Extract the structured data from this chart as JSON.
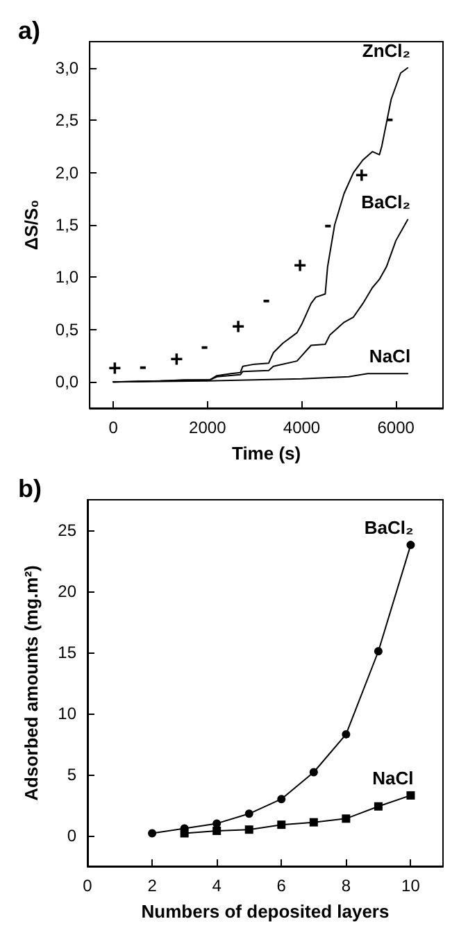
{
  "chart_data": [
    {
      "type": "line",
      "title": "a)",
      "xlabel": "Time (s)",
      "ylabel": "ΔS/S₀",
      "xlim": [
        -500,
        7000
      ],
      "xticks": [
        0,
        2000,
        4000,
        6000
      ],
      "ylim": [
        -0.25,
        3.25
      ],
      "yticks": [
        {
          "value": 0,
          "label": "0,0"
        },
        {
          "value": 0.5,
          "label": "0,5"
        },
        {
          "value": 1,
          "label": "1,0"
        },
        {
          "value": 1.5,
          "label": "1,5"
        },
        {
          "value": 2,
          "label": "2,0"
        },
        {
          "value": 2.5,
          "label": "2,5"
        },
        {
          "value": 3,
          "label": "3,0"
        }
      ],
      "grid": false,
      "marker": "none",
      "series": [
        {
          "name": "ZnCl₂",
          "color": "#000000",
          "x": [
            0,
            1000,
            1500,
            2050,
            2200,
            2500,
            2700,
            2750,
            3000,
            3300,
            3400,
            3600,
            3900,
            4000,
            4200,
            4300,
            4500,
            4550,
            4700,
            4900,
            5100,
            5300,
            5500,
            5650,
            5700,
            5900,
            6100,
            6250
          ],
          "values": [
            0,
            0.01,
            0.02,
            0.02,
            0.06,
            0.08,
            0.09,
            0.15,
            0.17,
            0.18,
            0.28,
            0.37,
            0.47,
            0.55,
            0.75,
            0.81,
            0.84,
            1.1,
            1.5,
            1.8,
            2.0,
            2.12,
            2.2,
            2.17,
            2.25,
            2.7,
            2.95,
            3.0
          ]
        },
        {
          "name": "BaCl₂",
          "color": "#000000",
          "x": [
            0,
            2050,
            2200,
            2700,
            2750,
            3300,
            3400,
            3900,
            4000,
            4200,
            4500,
            4600,
            4900,
            5100,
            5300,
            5500,
            5650,
            5800,
            6000,
            6250
          ],
          "values": [
            0,
            0.02,
            0.05,
            0.07,
            0.1,
            0.11,
            0.15,
            0.2,
            0.25,
            0.35,
            0.36,
            0.45,
            0.57,
            0.62,
            0.75,
            0.9,
            0.98,
            1.1,
            1.35,
            1.55
          ]
        },
        {
          "name": "NaCl",
          "color": "#000000",
          "x": [
            0,
            2000,
            3000,
            4000,
            5000,
            5400,
            6250
          ],
          "values": [
            0,
            0.01,
            0.02,
            0.03,
            0.05,
            0.08,
            0.08
          ]
        }
      ],
      "annotations": [
        "+",
        "-",
        "+",
        "-",
        "+",
        "-",
        "+",
        "-",
        "+",
        "-"
      ]
    },
    {
      "type": "line",
      "title": "b)",
      "xlabel": "Numbers of deposited layers",
      "ylabel": "Adsorbed amounts (mg.m²)",
      "xlim": [
        0,
        11
      ],
      "xticks": [
        0,
        2,
        4,
        6,
        8,
        10
      ],
      "ylim": [
        -2.5,
        27.5
      ],
      "yticks": [
        0,
        5,
        10,
        15,
        20,
        25
      ],
      "grid": false,
      "series": [
        {
          "name": "BaCl₂",
          "color": "#000000",
          "marker": "circle",
          "x": [
            2,
            3,
            4,
            5,
            6,
            7,
            8,
            9,
            10
          ],
          "values": [
            0.2,
            0.6,
            1.0,
            1.8,
            3.0,
            5.2,
            8.3,
            15.1,
            23.8
          ]
        },
        {
          "name": "NaCl",
          "color": "#000000",
          "marker": "square",
          "x": [
            3,
            4,
            5,
            6,
            7,
            8,
            9,
            10
          ],
          "values": [
            0.2,
            0.4,
            0.5,
            0.9,
            1.1,
            1.4,
            2.4,
            3.3
          ]
        }
      ]
    }
  ]
}
